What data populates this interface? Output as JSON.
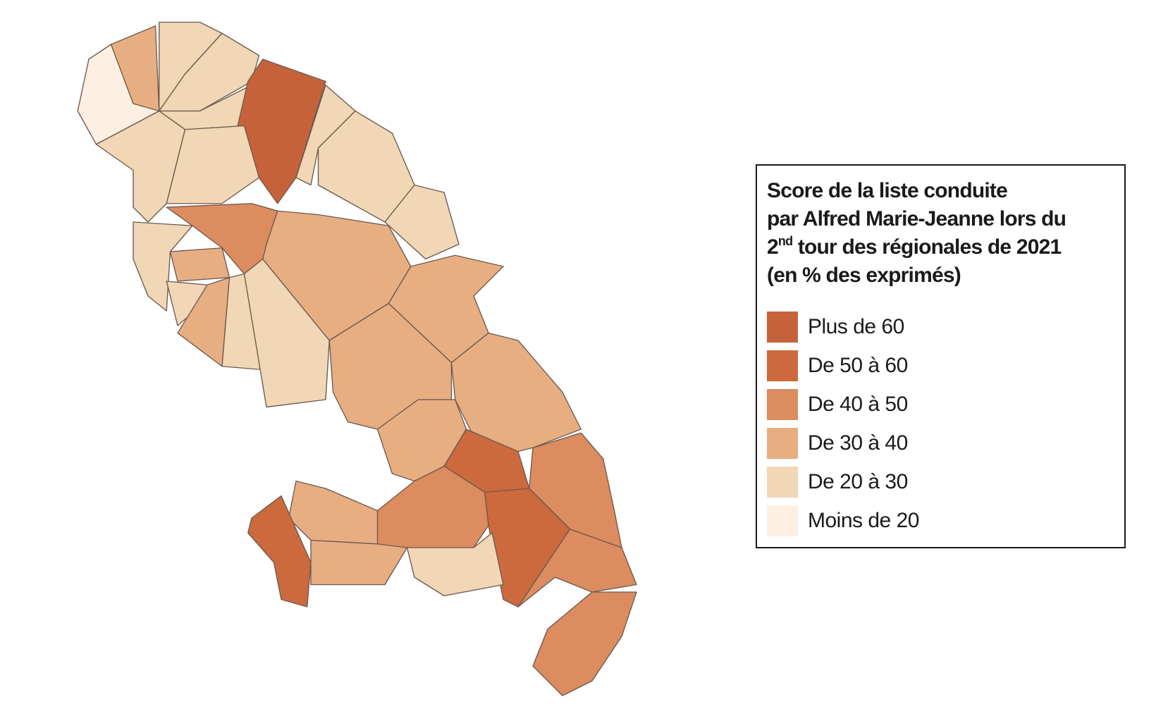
{
  "legend": {
    "title": {
      "line1": "Score de la liste conduite",
      "line2": "par Alfred Marie-Jeanne  lors du",
      "line3_number": "2",
      "line3_sup": "nd",
      "line3_rest": " tour des régionales de 2021",
      "line4": "(en % des exprimés)"
    },
    "items": [
      {
        "label": "Plus de 60",
        "color": "#c6623a"
      },
      {
        "label": "De 50 à 60",
        "color": "#cc6a3d"
      },
      {
        "label": "De 40 à 50",
        "color": "#dc8c5e"
      },
      {
        "label": "De 30 à 40",
        "color": "#e7ae82"
      },
      {
        "label": "De 20 à 30",
        "color": "#f1d7b5"
      },
      {
        "label": "Moins de 20",
        "color": "#fdf0e2"
      }
    ]
  }
}
